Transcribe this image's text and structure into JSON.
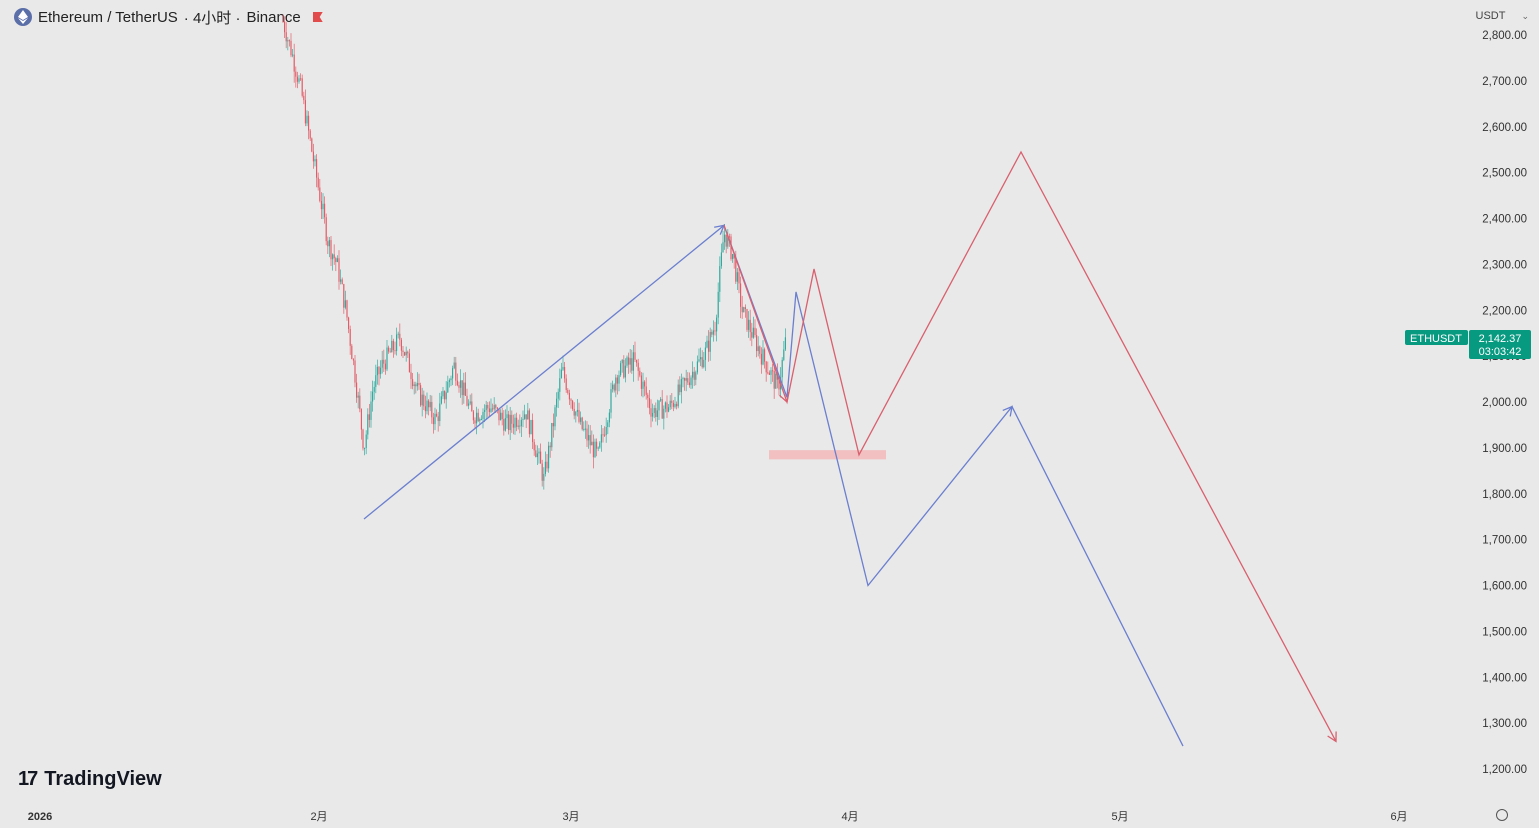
{
  "header": {
    "symbol": "Ethereum / TetherUS",
    "interval": "· 4小时 ·",
    "exchange": "Binance"
  },
  "currency": "USDT",
  "price_label": {
    "ticker": "ETHUSDT",
    "price": "2,142.37",
    "countdown": "03:03:42",
    "color": "#089981"
  },
  "branding": "TradingView",
  "colors": {
    "up": "#26a69a",
    "down": "#e05560",
    "blue_path": "#6b7fcf",
    "red_path": "#d9606e",
    "zone": "#f4b5b5"
  },
  "chart_data": {
    "type": "line",
    "title": "",
    "xlabel": "",
    "ylabel": "",
    "y_ticks": [
      2800,
      2700,
      2600,
      2500,
      2400,
      2300,
      2200,
      2100,
      2000,
      1900,
      1800,
      1700,
      1600,
      1500,
      1400,
      1300,
      1200
    ],
    "y_tick_labels": [
      "2,800.00",
      "2,700.00",
      "2,600.00",
      "2,500.00",
      "2,400.00",
      "2,300.00",
      "2,200.00",
      "2,100.00",
      "2,000.00",
      "1,900.00",
      "1,800.00",
      "1,700.00",
      "1,600.00",
      "1,500.00",
      "1,400.00",
      "1,300.00",
      "1,200.00"
    ],
    "ylim": [
      1150,
      2835
    ],
    "x_tick_labels": [
      {
        "date": "2026-01-01",
        "label": "2026"
      },
      {
        "date": "2026-02-01",
        "label": "2月"
      },
      {
        "date": "2026-03-01",
        "label": "3月"
      },
      {
        "date": "2026-04-01",
        "label": "4月"
      },
      {
        "date": "2026-05-01",
        "label": "5月"
      },
      {
        "date": "2026-06-01",
        "label": "6月"
      }
    ],
    "price_path": [
      [
        "2026-01-28",
        2830
      ],
      [
        "2026-01-29",
        2760
      ],
      [
        "2026-01-30",
        2680
      ],
      [
        "2026-02-01",
        2460
      ],
      [
        "2026-02-02",
        2350
      ],
      [
        "2026-02-03",
        2300
      ],
      [
        "2026-02-04",
        2200
      ],
      [
        "2026-02-05",
        2060
      ],
      [
        "2026-02-06",
        1900
      ],
      [
        "2026-02-07",
        2030
      ],
      [
        "2026-02-08",
        2080
      ],
      [
        "2026-02-10",
        2140
      ],
      [
        "2026-02-12",
        2020
      ],
      [
        "2026-02-14",
        1960
      ],
      [
        "2026-02-16",
        2080
      ],
      [
        "2026-02-18",
        1970
      ],
      [
        "2026-02-20",
        1990
      ],
      [
        "2026-02-22",
        1950
      ],
      [
        "2026-02-24",
        1980
      ],
      [
        "2026-02-26",
        1830
      ],
      [
        "2026-02-28",
        2070
      ],
      [
        "2026-03-02",
        1950
      ],
      [
        "2026-03-04",
        1880
      ],
      [
        "2026-03-06",
        2060
      ],
      [
        "2026-03-08",
        2090
      ],
      [
        "2026-03-10",
        1980
      ],
      [
        "2026-03-12",
        1990
      ],
      [
        "2026-03-14",
        2050
      ],
      [
        "2026-03-16",
        2110
      ],
      [
        "2026-03-17",
        2170
      ],
      [
        "2026-03-18",
        2370
      ],
      [
        "2026-03-19",
        2320
      ],
      [
        "2026-03-20",
        2200
      ],
      [
        "2026-03-22",
        2110
      ],
      [
        "2026-03-24",
        2030
      ],
      [
        "2026-03-25",
        2150
      ]
    ],
    "series": [
      {
        "type": "line",
        "color": "#6b7fcf",
        "points": [
          [
            "2026-02-06",
            1745
          ],
          [
            "2026-03-18",
            2385
          ],
          [
            "2026-03-25",
            2010
          ],
          [
            "2026-03-26",
            2240
          ],
          [
            "2026-04-03",
            1600
          ],
          [
            "2026-04-19",
            1990
          ],
          [
            "2026-05-08",
            1250
          ]
        ],
        "arrow_at": [
          1,
          5,
          7
        ]
      },
      {
        "type": "line",
        "color": "#d9606e",
        "points": [
          [
            "2026-03-18",
            2385
          ],
          [
            "2026-03-25",
            2000
          ],
          [
            "2026-03-28",
            2290
          ],
          [
            "2026-04-02",
            1885
          ],
          [
            "2026-04-20",
            2545
          ],
          [
            "2026-05-25",
            1260
          ]
        ],
        "arrow_at": [
          1,
          5
        ]
      }
    ],
    "zone": {
      "x_start": "2026-03-23",
      "x_end": "2026-04-05",
      "y_low": 1875,
      "y_high": 1895
    }
  }
}
